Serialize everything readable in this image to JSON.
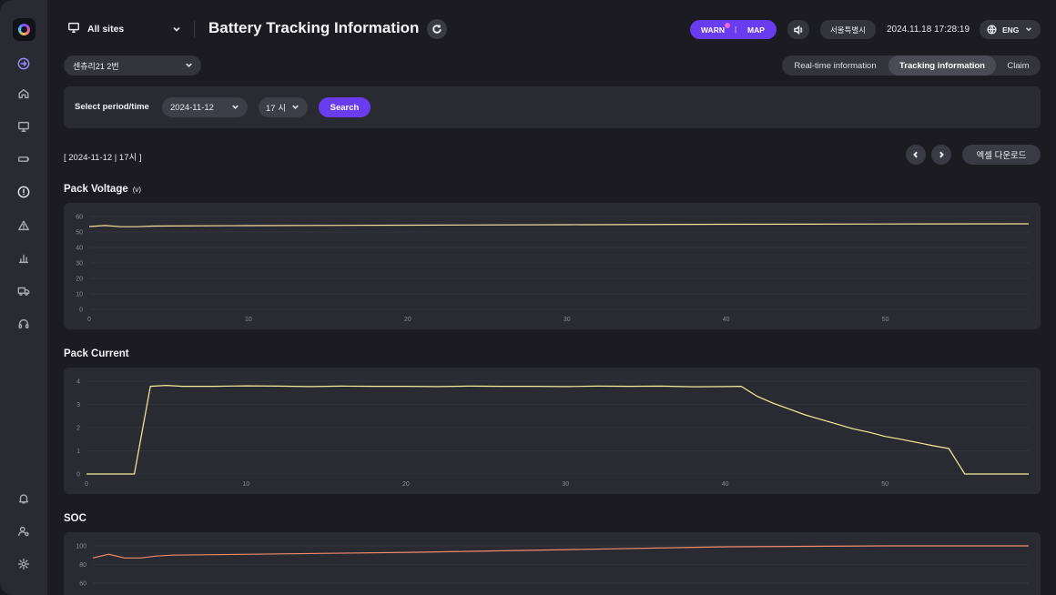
{
  "sidebar": {
    "icons": [
      "logo",
      "arrow-right-icon",
      "home-icon",
      "monitor-icon",
      "battery-icon",
      "alert-circle-icon",
      "warning-triangle-icon",
      "bar-chart-icon",
      "truck-icon",
      "headset-icon",
      "bell-icon",
      "user-settings-icon",
      "gear-icon"
    ]
  },
  "header": {
    "site_label": "All sites",
    "title": "Battery Tracking Information",
    "warn_label": "WARN",
    "separator": "|",
    "map_label": "MAP",
    "region_label": "서울특별시",
    "datetime": "2024.11.18 17:28:19",
    "lang_label": "ENG"
  },
  "device": {
    "selected": "센츄리21 2번"
  },
  "view_tabs": [
    {
      "label": "Real-time information",
      "active": false
    },
    {
      "label": "Tracking information",
      "active": true
    },
    {
      "label": "Claim",
      "active": false
    }
  ],
  "filter": {
    "label": "Select period/time",
    "date_value": "2024-11-12",
    "hour_value": "17 시",
    "search_label": "Search"
  },
  "range_label": "[ 2024-11-12 | 17시 ]",
  "excel_label": "엑셀 다운로드",
  "colors": {
    "accent": "#6a3cf0",
    "voltage_line": "#f5df9a",
    "current_line": "#f5ef9a",
    "soc_line": "#f08a6a"
  },
  "chart_data": [
    {
      "type": "line",
      "title": "Pack Voltage",
      "unit": "(v)",
      "xlim": [
        0,
        59
      ],
      "x_ticks": [
        0,
        10,
        20,
        30,
        40,
        50
      ],
      "ylim": [
        0,
        60
      ],
      "y_ticks": [
        0,
        10,
        20,
        30,
        40,
        50,
        60
      ],
      "grid": true,
      "x": [
        0,
        1,
        2,
        3,
        4,
        5,
        10,
        20,
        30,
        40,
        50,
        59
      ],
      "series": [
        {
          "values": [
            53.5,
            54.2,
            53.4,
            53.4,
            53.8,
            53.9,
            54.1,
            54.4,
            54.7,
            55.0,
            55.2,
            55.3
          ]
        }
      ]
    },
    {
      "type": "line",
      "title": "Pack Current",
      "xlim": [
        0,
        59
      ],
      "x_ticks": [
        0,
        10,
        20,
        30,
        40,
        50
      ],
      "ylim": [
        0,
        4
      ],
      "y_ticks": [
        0,
        1,
        2,
        3,
        4
      ],
      "grid": true,
      "x": [
        0,
        1,
        2,
        3,
        4,
        5,
        6,
        8,
        10,
        12,
        14,
        16,
        18,
        20,
        22,
        24,
        26,
        28,
        30,
        32,
        34,
        36,
        38,
        40,
        41,
        42,
        43,
        44,
        45,
        46,
        47,
        48,
        49,
        50,
        51,
        52,
        53,
        54,
        55,
        56,
        57,
        58,
        59
      ],
      "series": [
        {
          "values": [
            0,
            0,
            0,
            0,
            3.78,
            3.82,
            3.78,
            3.78,
            3.8,
            3.79,
            3.77,
            3.79,
            3.78,
            3.78,
            3.77,
            3.79,
            3.78,
            3.78,
            3.77,
            3.79,
            3.78,
            3.79,
            3.76,
            3.77,
            3.78,
            3.35,
            3.05,
            2.8,
            2.55,
            2.35,
            2.15,
            1.95,
            1.8,
            1.62,
            1.5,
            1.36,
            1.22,
            1.1,
            0,
            0,
            0,
            0,
            0
          ]
        }
      ]
    },
    {
      "type": "line",
      "title": "SOC",
      "xlim": [
        0,
        59
      ],
      "ylim": [
        0,
        100
      ],
      "y_ticks": [
        60,
        80,
        100
      ],
      "grid": true,
      "x": [
        0,
        1,
        2,
        3,
        4,
        5,
        10,
        20,
        30,
        40,
        50,
        59
      ],
      "series": [
        {
          "values": [
            87,
            91,
            87,
            87,
            89,
            90,
            91,
            93,
            96,
            99,
            100,
            100
          ]
        }
      ]
    }
  ]
}
